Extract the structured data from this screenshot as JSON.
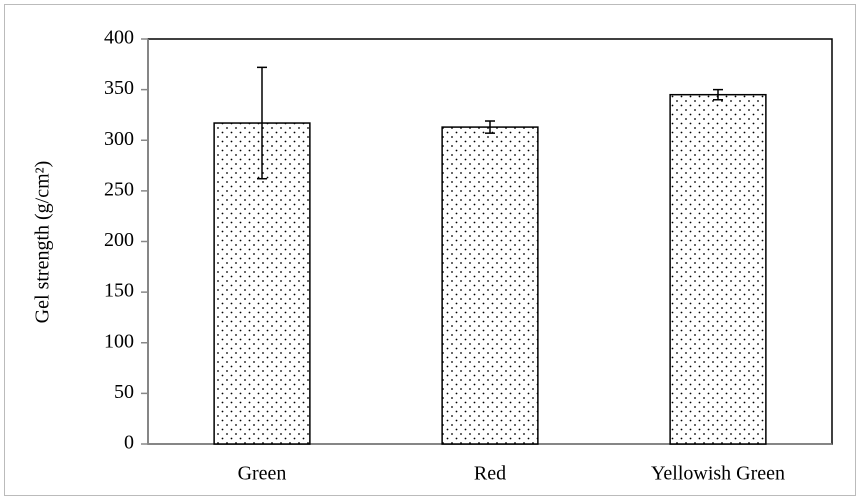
{
  "chart_data": {
    "type": "bar",
    "y_label": "Gel strength (g/cm²)",
    "categories": [
      "Green",
      "Red",
      "Yellowish Green"
    ],
    "values": [
      317,
      313,
      345
    ],
    "errors": [
      55,
      6,
      5
    ],
    "color": "#ffffff",
    "ylim": [
      0,
      400
    ],
    "yticks": [
      0,
      50,
      100,
      150,
      200,
      250,
      300,
      350,
      400
    ],
    "grid": false
  }
}
